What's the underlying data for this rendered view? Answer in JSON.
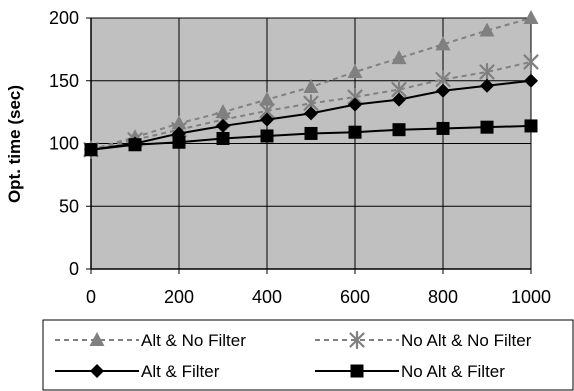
{
  "chart_data": {
    "type": "line",
    "ylabel": "Opt. time (sec)",
    "xlabel": "",
    "x": [
      0,
      100,
      200,
      300,
      400,
      500,
      600,
      700,
      800,
      900,
      1000
    ],
    "xticks": [
      0,
      200,
      400,
      600,
      800,
      1000
    ],
    "yticks": [
      0,
      50,
      100,
      150,
      200
    ],
    "xlim": [
      0,
      1000
    ],
    "ylim": [
      0,
      200
    ],
    "grid": true,
    "plot_background": "#c0c0c0",
    "legend_position": "bottom",
    "series": [
      {
        "name": "Alt & No Filter",
        "values": [
          95,
          105,
          116,
          125,
          135,
          145,
          157,
          168,
          179,
          190,
          200
        ],
        "color": "#808080",
        "dashed": true,
        "marker": "triangle"
      },
      {
        "name": "No Alt & No Filter",
        "values": [
          95,
          103,
          111,
          119,
          126,
          132,
          137,
          143,
          151,
          157,
          165
        ],
        "color": "#808080",
        "dashed": true,
        "marker": "star"
      },
      {
        "name": "Alt & Filter",
        "values": [
          95,
          100,
          108,
          114,
          119,
          124,
          131,
          135,
          142,
          146,
          150
        ],
        "color": "#000000",
        "dashed": false,
        "marker": "diamond"
      },
      {
        "name": "No Alt & Filter",
        "values": [
          95,
          99,
          101,
          104,
          106,
          108,
          109,
          111,
          112,
          113,
          114
        ],
        "color": "#000000",
        "dashed": false,
        "marker": "square"
      }
    ]
  }
}
